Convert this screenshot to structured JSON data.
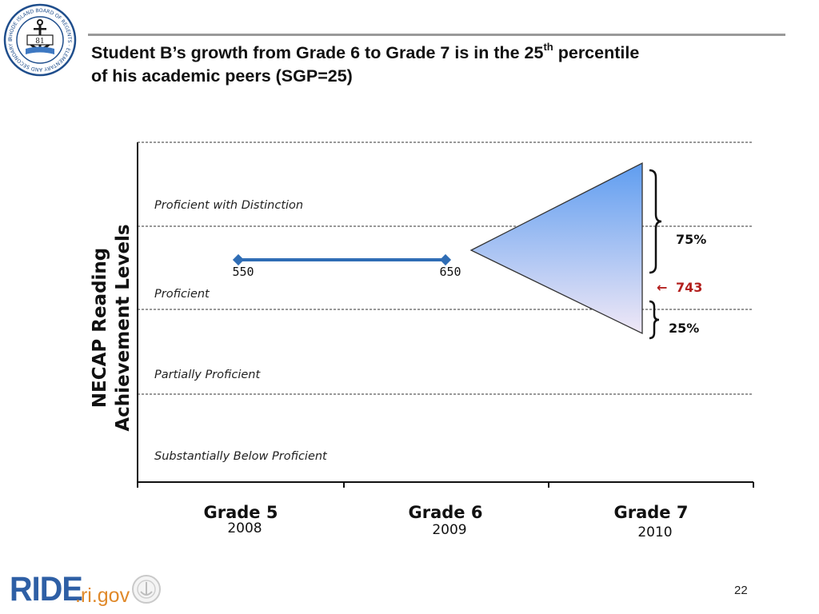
{
  "slide": {
    "title_line1_pre": "Student B’s growth from Grade 6 to Grade 7 is in the 25",
    "title_sup": "th",
    "title_line1_post": " percentile",
    "title_line2": "of his academic peers (SGP=25)",
    "page_number": "22"
  },
  "seal": {
    "ring_text": "RHODE ISLAND BOARD OF REGENTS · ELEMENTARY AND SECONDARY EDUCATION",
    "center_text": "81"
  },
  "footer": {
    "brand": "RIDE",
    "domain": ".ri.gov"
  },
  "chart_data": {
    "type": "line",
    "ylabel_line1": "NECAP Reading",
    "ylabel_line2": "Achievement Levels",
    "categories": [
      "Grade 5",
      "Grade 6",
      "Grade 7"
    ],
    "years": [
      "2008",
      "2009",
      "2010"
    ],
    "bands": [
      "Proficient with Distinction",
      "Proficient",
      "Partially Proficient",
      "Substantially Below Proficient"
    ],
    "series": [
      {
        "points": [
          {
            "x": "Grade 5",
            "y": 550,
            "label": "550"
          },
          {
            "x": "Grade 6",
            "y": 650,
            "label": "650"
          }
        ]
      }
    ],
    "projection": {
      "from": "Grade 6",
      "to": "Grade 7",
      "upper_label": "75%",
      "lower_label": "25%",
      "actual_label": "743",
      "actual_arrow": "←"
    },
    "colors": {
      "series": "#2f6db5",
      "cone_top": "#5f9df0",
      "cone_bottom": "#f0e8f6",
      "actual": "#b3201e",
      "ride_blue": "#2e5fa5",
      "ride_orange": "#e0892a"
    }
  }
}
